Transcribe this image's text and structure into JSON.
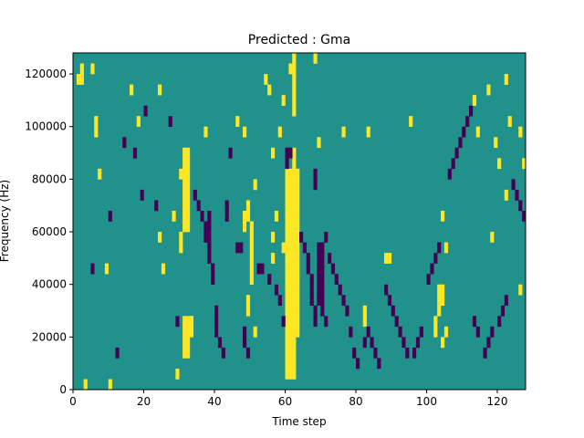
{
  "chart_data": {
    "type": "heatmap",
    "title": "Predicted : Gma",
    "xlabel": "Time step",
    "ylabel": "Frequency (Hz)",
    "xlim": [
      0,
      128
    ],
    "ylim": [
      0,
      128000
    ],
    "x_ticks": [
      0,
      20,
      40,
      60,
      80,
      100,
      120
    ],
    "y_ticks": [
      0,
      20000,
      40000,
      60000,
      80000,
      100000,
      120000
    ],
    "x_tick_labels": [
      "0",
      "20",
      "40",
      "60",
      "80",
      "100",
      "120"
    ],
    "y_tick_labels": [
      "0",
      "20000",
      "40000",
      "60000",
      "80000",
      "100000",
      "120000"
    ],
    "grid": false,
    "n_time_steps": 128,
    "n_frequency_bins": 32,
    "bin_height_hz": 4000,
    "levels": [
      -1,
      0,
      1
    ],
    "colors": {
      "-1": "#440154",
      "0": "#21918c",
      "1": "#fde725"
    },
    "background_level": 0,
    "high_cells": [
      [
        1,
        29
      ],
      [
        2,
        29
      ],
      [
        2,
        30
      ],
      [
        3,
        0
      ],
      [
        5,
        30
      ],
      [
        6,
        25
      ],
      [
        6,
        24
      ],
      [
        7,
        20
      ],
      [
        9,
        11
      ],
      [
        10,
        0
      ],
      [
        16,
        28
      ],
      [
        18,
        25
      ],
      [
        24,
        28
      ],
      [
        24,
        14
      ],
      [
        25,
        11
      ],
      [
        28,
        16
      ],
      [
        29,
        1
      ],
      [
        30,
        13
      ],
      [
        30,
        14
      ],
      [
        30,
        20
      ],
      [
        31,
        15
      ],
      [
        31,
        16
      ],
      [
        31,
        17
      ],
      [
        31,
        18
      ],
      [
        31,
        19
      ],
      [
        31,
        20
      ],
      [
        31,
        21
      ],
      [
        31,
        22
      ],
      [
        31,
        3
      ],
      [
        31,
        4
      ],
      [
        31,
        5
      ],
      [
        31,
        6
      ],
      [
        32,
        3
      ],
      [
        32,
        4
      ],
      [
        32,
        5
      ],
      [
        32,
        6
      ],
      [
        32,
        15
      ],
      [
        32,
        16
      ],
      [
        32,
        17
      ],
      [
        32,
        18
      ],
      [
        32,
        19
      ],
      [
        32,
        20
      ],
      [
        32,
        21
      ],
      [
        32,
        22
      ],
      [
        33,
        5
      ],
      [
        33,
        6
      ],
      [
        37,
        24
      ],
      [
        46,
        25
      ],
      [
        48,
        15
      ],
      [
        48,
        16
      ],
      [
        48,
        24
      ],
      [
        49,
        7
      ],
      [
        49,
        8
      ],
      [
        49,
        16
      ],
      [
        49,
        17
      ],
      [
        50,
        10
      ],
      [
        50,
        11
      ],
      [
        50,
        12
      ],
      [
        50,
        13
      ],
      [
        50,
        14
      ],
      [
        50,
        15
      ],
      [
        51,
        5
      ],
      [
        51,
        19
      ],
      [
        54,
        29
      ],
      [
        55,
        28
      ],
      [
        56,
        12
      ],
      [
        56,
        14
      ],
      [
        56,
        22
      ],
      [
        57,
        16
      ],
      [
        58,
        24
      ],
      [
        59,
        13
      ],
      [
        59,
        27
      ],
      [
        60,
        1
      ],
      [
        60,
        2
      ],
      [
        60,
        3
      ],
      [
        60,
        4
      ],
      [
        60,
        5
      ],
      [
        60,
        6
      ],
      [
        60,
        7
      ],
      [
        60,
        8
      ],
      [
        60,
        9
      ],
      [
        60,
        10
      ],
      [
        60,
        11
      ],
      [
        60,
        12
      ],
      [
        60,
        13
      ],
      [
        60,
        14
      ],
      [
        60,
        15
      ],
      [
        60,
        16
      ],
      [
        60,
        17
      ],
      [
        60,
        18
      ],
      [
        60,
        19
      ],
      [
        60,
        20
      ],
      [
        61,
        1
      ],
      [
        61,
        2
      ],
      [
        61,
        3
      ],
      [
        61,
        4
      ],
      [
        61,
        5
      ],
      [
        61,
        6
      ],
      [
        61,
        7
      ],
      [
        61,
        8
      ],
      [
        61,
        9
      ],
      [
        61,
        10
      ],
      [
        61,
        11
      ],
      [
        61,
        12
      ],
      [
        61,
        13
      ],
      [
        61,
        14
      ],
      [
        61,
        15
      ],
      [
        61,
        16
      ],
      [
        61,
        17
      ],
      [
        61,
        18
      ],
      [
        61,
        19
      ],
      [
        61,
        20
      ],
      [
        61,
        30
      ],
      [
        62,
        1
      ],
      [
        62,
        2
      ],
      [
        62,
        3
      ],
      [
        62,
        4
      ],
      [
        62,
        5
      ],
      [
        62,
        6
      ],
      [
        62,
        7
      ],
      [
        62,
        8
      ],
      [
        62,
        9
      ],
      [
        62,
        10
      ],
      [
        62,
        11
      ],
      [
        62,
        12
      ],
      [
        62,
        13
      ],
      [
        62,
        14
      ],
      [
        62,
        15
      ],
      [
        62,
        16
      ],
      [
        62,
        17
      ],
      [
        62,
        18
      ],
      [
        62,
        19
      ],
      [
        62,
        20
      ],
      [
        62,
        21
      ],
      [
        62,
        22
      ],
      [
        62,
        26
      ],
      [
        62,
        27
      ],
      [
        62,
        28
      ],
      [
        62,
        29
      ],
      [
        62,
        30
      ],
      [
        62,
        31
      ],
      [
        63,
        5
      ],
      [
        63,
        6
      ],
      [
        63,
        7
      ],
      [
        63,
        8
      ],
      [
        63,
        9
      ],
      [
        63,
        10
      ],
      [
        63,
        11
      ],
      [
        63,
        12
      ],
      [
        63,
        13
      ],
      [
        63,
        14
      ],
      [
        63,
        15
      ],
      [
        63,
        16
      ],
      [
        63,
        17
      ],
      [
        63,
        18
      ],
      [
        63,
        19
      ],
      [
        63,
        20
      ],
      [
        68,
        31
      ],
      [
        69,
        23
      ],
      [
        76,
        24
      ],
      [
        82,
        6
      ],
      [
        82,
        7
      ],
      [
        83,
        24
      ],
      [
        88,
        12
      ],
      [
        89,
        12
      ],
      [
        95,
        25
      ],
      [
        102,
        5
      ],
      [
        102,
        6
      ],
      [
        103,
        7
      ],
      [
        103,
        8
      ],
      [
        103,
        9
      ],
      [
        104,
        4
      ],
      [
        104,
        8
      ],
      [
        104,
        9
      ],
      [
        104,
        16
      ],
      [
        105,
        5
      ],
      [
        105,
        13
      ],
      [
        113,
        27
      ],
      [
        114,
        24
      ],
      [
        117,
        28
      ],
      [
        118,
        14
      ],
      [
        119,
        23
      ],
      [
        120,
        21
      ],
      [
        122,
        18
      ],
      [
        122,
        29
      ],
      [
        123,
        25
      ],
      [
        126,
        9
      ],
      [
        126,
        24
      ],
      [
        127,
        21
      ]
    ],
    "low_cells": [
      [
        5,
        11
      ],
      [
        10,
        16
      ],
      [
        12,
        3
      ],
      [
        14,
        23
      ],
      [
        17,
        22
      ],
      [
        19,
        18
      ],
      [
        20,
        26
      ],
      [
        23,
        17
      ],
      [
        27,
        25
      ],
      [
        29,
        6
      ],
      [
        34,
        18
      ],
      [
        35,
        17
      ],
      [
        36,
        16
      ],
      [
        37,
        15
      ],
      [
        37,
        14
      ],
      [
        38,
        12
      ],
      [
        38,
        13
      ],
      [
        38,
        14
      ],
      [
        38,
        15
      ],
      [
        38,
        16
      ],
      [
        39,
        10
      ],
      [
        39,
        11
      ],
      [
        40,
        5
      ],
      [
        40,
        6
      ],
      [
        40,
        7
      ],
      [
        41,
        4
      ],
      [
        42,
        3
      ],
      [
        43,
        16
      ],
      [
        43,
        17
      ],
      [
        44,
        22
      ],
      [
        46,
        13
      ],
      [
        47,
        13
      ],
      [
        48,
        4
      ],
      [
        48,
        5
      ],
      [
        49,
        3
      ],
      [
        52,
        11
      ],
      [
        53,
        11
      ],
      [
        55,
        10
      ],
      [
        57,
        9
      ],
      [
        58,
        8
      ],
      [
        59,
        6
      ],
      [
        60,
        21
      ],
      [
        60,
        22
      ],
      [
        61,
        22
      ],
      [
        64,
        14
      ],
      [
        65,
        13
      ],
      [
        66,
        12
      ],
      [
        66,
        11
      ],
      [
        67,
        10
      ],
      [
        67,
        9
      ],
      [
        67,
        8
      ],
      [
        68,
        7
      ],
      [
        68,
        6
      ],
      [
        68,
        19
      ],
      [
        68,
        20
      ],
      [
        69,
        8
      ],
      [
        69,
        9
      ],
      [
        69,
        10
      ],
      [
        69,
        11
      ],
      [
        69,
        12
      ],
      [
        69,
        13
      ],
      [
        70,
        7
      ],
      [
        70,
        8
      ],
      [
        70,
        9
      ],
      [
        70,
        10
      ],
      [
        70,
        11
      ],
      [
        70,
        12
      ],
      [
        70,
        13
      ],
      [
        71,
        6
      ],
      [
        71,
        14
      ],
      [
        72,
        12
      ],
      [
        73,
        11
      ],
      [
        74,
        10
      ],
      [
        75,
        9
      ],
      [
        76,
        8
      ],
      [
        77,
        7
      ],
      [
        78,
        5
      ],
      [
        79,
        3
      ],
      [
        80,
        2
      ],
      [
        82,
        4
      ],
      [
        83,
        5
      ],
      [
        84,
        4
      ],
      [
        85,
        3
      ],
      [
        86,
        2
      ],
      [
        88,
        9
      ],
      [
        89,
        8
      ],
      [
        90,
        7
      ],
      [
        91,
        6
      ],
      [
        92,
        5
      ],
      [
        93,
        4
      ],
      [
        94,
        3
      ],
      [
        96,
        3
      ],
      [
        97,
        4
      ],
      [
        98,
        5
      ],
      [
        100,
        10
      ],
      [
        101,
        11
      ],
      [
        102,
        12
      ],
      [
        103,
        13
      ],
      [
        106,
        20
      ],
      [
        107,
        21
      ],
      [
        108,
        22
      ],
      [
        109,
        23
      ],
      [
        110,
        24
      ],
      [
        111,
        25
      ],
      [
        112,
        26
      ],
      [
        113,
        6
      ],
      [
        114,
        5
      ],
      [
        116,
        3
      ],
      [
        117,
        4
      ],
      [
        118,
        5
      ],
      [
        120,
        6
      ],
      [
        121,
        7
      ],
      [
        122,
        8
      ],
      [
        124,
        19
      ],
      [
        125,
        18
      ],
      [
        126,
        17
      ],
      [
        127,
        16
      ]
    ]
  }
}
